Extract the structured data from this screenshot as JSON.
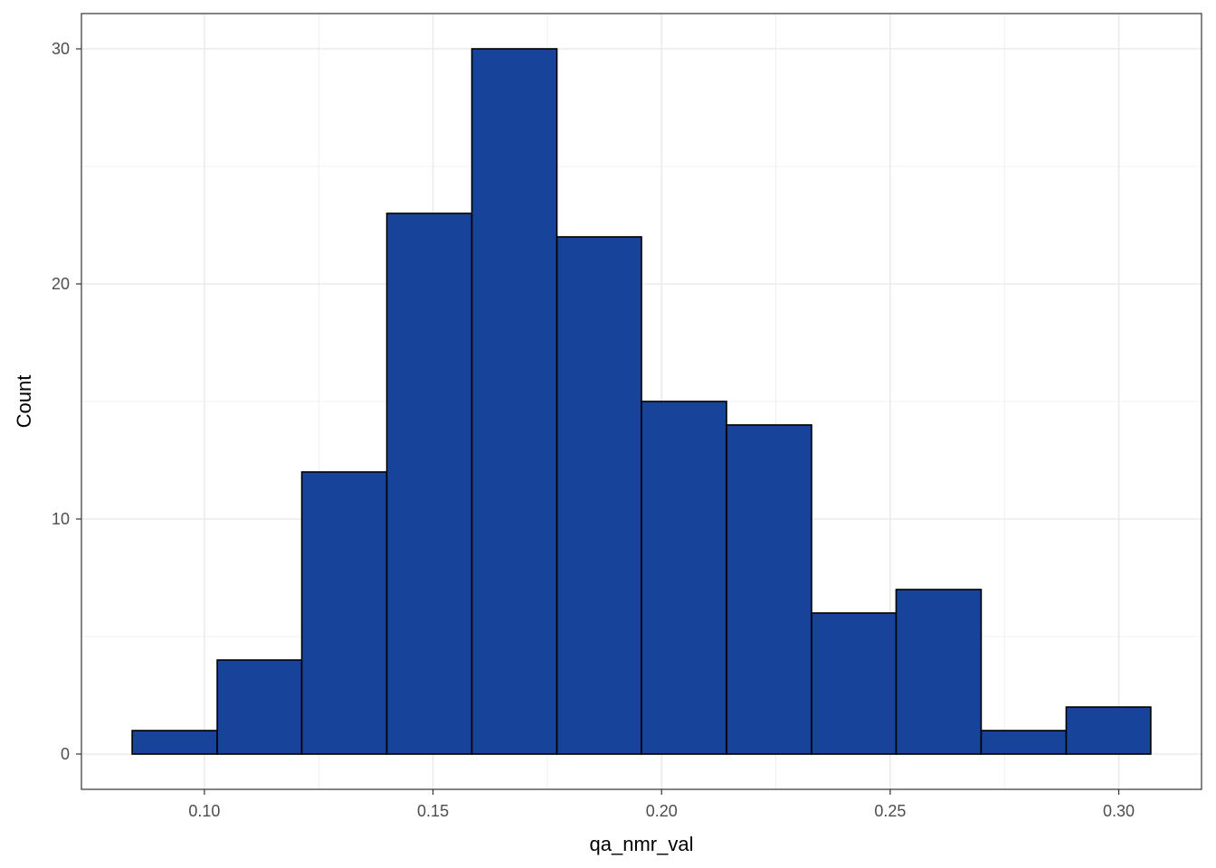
{
  "chart_data": {
    "type": "bar",
    "title": "",
    "xlabel": "qa_nmr_val",
    "ylabel": "Count",
    "bins": [
      {
        "x0": 0.0842,
        "x1": 0.1028,
        "count": 1
      },
      {
        "x0": 0.1028,
        "x1": 0.1213,
        "count": 4
      },
      {
        "x0": 0.1213,
        "x1": 0.1399,
        "count": 12
      },
      {
        "x0": 0.1399,
        "x1": 0.1585,
        "count": 23
      },
      {
        "x0": 0.1585,
        "x1": 0.1771,
        "count": 30
      },
      {
        "x0": 0.1771,
        "x1": 0.1956,
        "count": 22
      },
      {
        "x0": 0.1956,
        "x1": 0.2142,
        "count": 15
      },
      {
        "x0": 0.2142,
        "x1": 0.2328,
        "count": 14
      },
      {
        "x0": 0.2328,
        "x1": 0.2513,
        "count": 6
      },
      {
        "x0": 0.2513,
        "x1": 0.2699,
        "count": 7
      },
      {
        "x0": 0.2699,
        "x1": 0.2885,
        "count": 1
      },
      {
        "x0": 0.2885,
        "x1": 0.307,
        "count": 2
      }
    ],
    "xlim": [
      0.0731,
      0.3181
    ],
    "ylim": [
      -1.5,
      31.5
    ],
    "x_ticks": [
      0.1,
      0.15,
      0.2,
      0.25,
      0.3
    ],
    "x_tick_labels": [
      "0.10",
      "0.15",
      "0.20",
      "0.25",
      "0.30"
    ],
    "y_ticks": [
      0,
      10,
      20,
      30
    ],
    "y_tick_labels": [
      "0",
      "10",
      "20",
      "30"
    ],
    "x_minor_ticks": [
      0.125,
      0.175,
      0.225,
      0.275
    ],
    "y_minor_ticks": [
      5,
      15,
      25
    ],
    "grid": true,
    "legend": "none",
    "colors": {
      "bar_fill": "#18439A",
      "bar_outline": "#000000",
      "grid": "#EBEBEB",
      "panel_border": "#333333",
      "tick_text": "#4D4D4D"
    }
  }
}
